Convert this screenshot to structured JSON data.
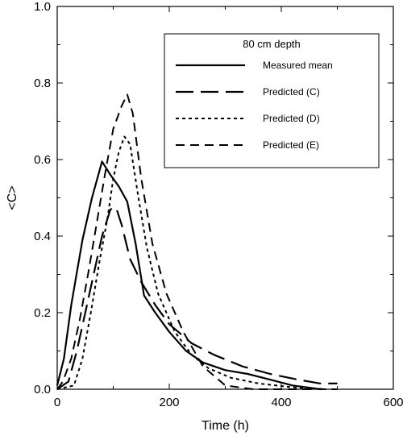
{
  "chart_data": {
    "type": "line",
    "title": "",
    "xlabel": "Time (h)",
    "ylabel": "<C>",
    "xlim": [
      0,
      600
    ],
    "ylim": [
      0,
      1.0
    ],
    "x_ticks": [
      0,
      200,
      400,
      600
    ],
    "y_ticks": [
      0.0,
      0.2,
      0.4,
      0.6,
      0.8,
      1.0
    ],
    "x_tick_labels": [
      "0",
      "200",
      "400",
      "600"
    ],
    "y_tick_labels": [
      "0.0",
      "0.2",
      "0.4",
      "0.6",
      "0.8",
      "1.0"
    ],
    "grid": false,
    "legend": {
      "title": "80 cm depth",
      "placement": "top-right"
    },
    "series": [
      {
        "name": "Measured mean",
        "style": "solid",
        "x": [
          0,
          12,
          25,
          45,
          62,
          80,
          95,
          110,
          125,
          140,
          155,
          175,
          200,
          230,
          260,
          300,
          340,
          380,
          420,
          470
        ],
        "y": [
          0.01,
          0.08,
          0.22,
          0.39,
          0.5,
          0.595,
          0.56,
          0.53,
          0.49,
          0.38,
          0.245,
          0.2,
          0.15,
          0.1,
          0.07,
          0.05,
          0.04,
          0.025,
          0.01,
          0.0
        ]
      },
      {
        "name": "Predicted (C)",
        "style": "long-dash",
        "x": [
          0,
          20,
          35,
          50,
          65,
          80,
          95,
          105,
          115,
          130,
          150,
          175,
          200,
          240,
          280,
          330,
          380,
          430,
          470,
          500
        ],
        "y": [
          0.0,
          0.02,
          0.1,
          0.2,
          0.3,
          0.4,
          0.47,
          0.475,
          0.43,
          0.34,
          0.28,
          0.22,
          0.17,
          0.12,
          0.09,
          0.06,
          0.04,
          0.025,
          0.015,
          0.015
        ]
      },
      {
        "name": "Predicted (D)",
        "style": "short-dash",
        "x": [
          0,
          30,
          45,
          60,
          75,
          90,
          100,
          110,
          120,
          130,
          145,
          160,
          180,
          210,
          240,
          270,
          310,
          360,
          420,
          480
        ],
        "y": [
          0.0,
          0.01,
          0.08,
          0.2,
          0.33,
          0.45,
          0.55,
          0.62,
          0.66,
          0.64,
          0.5,
          0.37,
          0.25,
          0.15,
          0.09,
          0.055,
          0.03,
          0.015,
          0.005,
          0.0
        ]
      },
      {
        "name": "Predicted (E)",
        "style": "medium-dash",
        "x": [
          0,
          10,
          25,
          40,
          55,
          70,
          85,
          100,
          115,
          125,
          135,
          150,
          170,
          195,
          225,
          260,
          300,
          350,
          400,
          450,
          500
        ],
        "y": [
          0.0,
          0.02,
          0.08,
          0.18,
          0.3,
          0.43,
          0.56,
          0.68,
          0.74,
          0.77,
          0.72,
          0.55,
          0.38,
          0.25,
          0.15,
          0.06,
          0.01,
          0.0,
          0.0,
          0.0,
          0.0
        ]
      }
    ]
  }
}
